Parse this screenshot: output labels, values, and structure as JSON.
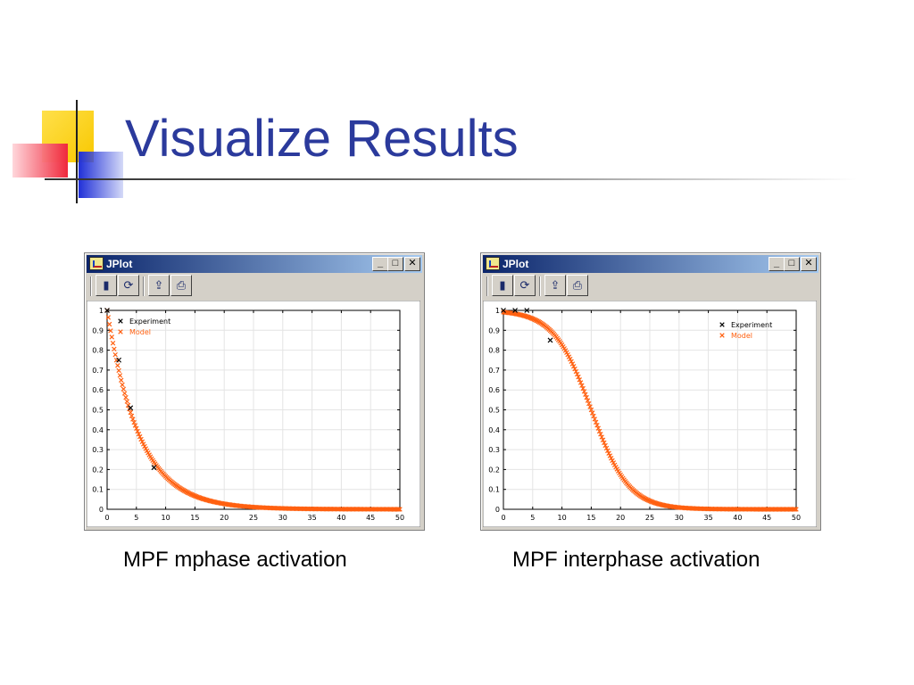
{
  "slide": {
    "title": "Visualize Results"
  },
  "windows": [
    {
      "title": "JPlot",
      "caption": "MPF mphase activation",
      "toolbar_icons": [
        "open-icon",
        "refresh-icon",
        "export-icon",
        "print-icon"
      ],
      "chart_data": {
        "type": "scatter",
        "xlim": [
          0,
          50
        ],
        "ylim": [
          0,
          1
        ],
        "xticks": [
          "0",
          "5",
          "10",
          "15",
          "20",
          "25",
          "30",
          "35",
          "40",
          "45",
          "50"
        ],
        "yticks": [
          "0",
          "0.1",
          "0.2",
          "0.3",
          "0.4",
          "0.5",
          "0.6",
          "0.7",
          "0.8",
          "0.9",
          "1"
        ],
        "grid": true,
        "legend_position": "top-left",
        "series": [
          {
            "name": "Experiment",
            "color": "#000000",
            "marker": "x",
            "x": [
              0,
              2,
              4,
              8
            ],
            "y": [
              1.0,
              0.75,
              0.51,
              0.21
            ]
          },
          {
            "name": "Model",
            "color": "#ff6010",
            "marker": "x",
            "model": "exponential-decay",
            "rate": 0.18,
            "x_step": 0.2
          }
        ]
      }
    },
    {
      "title": "JPlot",
      "caption": "MPF interphase activation",
      "toolbar_icons": [
        "open-icon",
        "refresh-icon",
        "export-icon",
        "print-icon"
      ],
      "chart_data": {
        "type": "scatter",
        "xlim": [
          0,
          50
        ],
        "ylim": [
          0,
          1
        ],
        "xticks": [
          "0",
          "5",
          "10",
          "15",
          "20",
          "25",
          "30",
          "35",
          "40",
          "45",
          "50"
        ],
        "yticks": [
          "0",
          "0.1",
          "0.2",
          "0.3",
          "0.4",
          "0.5",
          "0.6",
          "0.7",
          "0.8",
          "0.9",
          "1"
        ],
        "grid": true,
        "legend_position": "top-right",
        "series": [
          {
            "name": "Experiment",
            "color": "#000000",
            "marker": "x",
            "x": [
              0,
              2,
              4,
              8
            ],
            "y": [
              1.0,
              1.0,
              1.0,
              0.85
            ]
          },
          {
            "name": "Model",
            "color": "#ff6010",
            "marker": "x",
            "model": "sigmoid-decay",
            "midpoint": 15,
            "width": 3.2,
            "x_step": 0.2
          }
        ]
      }
    }
  ]
}
